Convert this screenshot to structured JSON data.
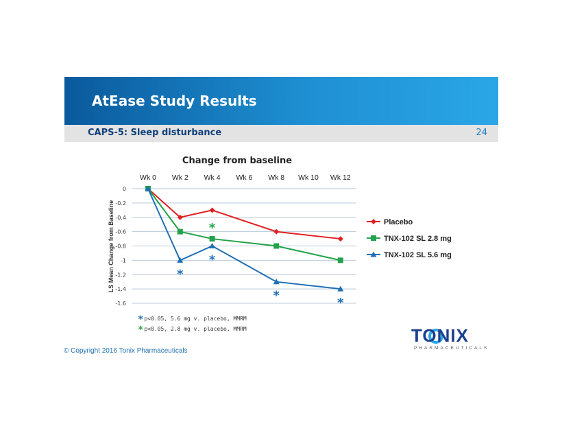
{
  "slide": {
    "title": "AtEase Study Results",
    "subtitle": "CAPS-5: Sleep disturbance",
    "page_number": "24",
    "copyright": "© Copyright 2016 Tonix Pharmaceuticals",
    "logo_text": "TONIX",
    "logo_subtext": "PHARMACEUTICALS"
  },
  "footnotes": [
    {
      "star": "*",
      "text": "p<0.05, 5.6 mg v. placebo, MMRM",
      "color": "#1f6fb4"
    },
    {
      "star": "*",
      "text": "p<0.05, 2.8 mg v. placebo, MMRM",
      "color": "#22a24a"
    }
  ],
  "chart_data": {
    "type": "line",
    "title": "Change from baseline",
    "ylabel": "LS Mean Change from Baseline",
    "xlabel": "",
    "categories": [
      "Wk 0",
      "Wk 2",
      "Wk 4",
      "Wk 6",
      "Wk 8",
      "Wk 10",
      "Wk 12"
    ],
    "ylim": [
      -1.6,
      0
    ],
    "yticks": [
      "0",
      "-0.2",
      "-0.4",
      "-0.6",
      "-0.8",
      "-1",
      "-1.2",
      "-1.4",
      "-1.6"
    ],
    "grid": true,
    "x_axis_position": "top",
    "legend": "right",
    "series": [
      {
        "name": "Placebo",
        "color": "#e02020",
        "marker": "diamond",
        "x": [
          "Wk 0",
          "Wk 2",
          "Wk 4",
          "Wk 8",
          "Wk 12"
        ],
        "values": [
          0,
          -0.4,
          -0.3,
          -0.6,
          -0.7
        ]
      },
      {
        "name": "TNX-102 SL 2.8 mg",
        "color": "#22a24a",
        "marker": "square",
        "x": [
          "Wk 0",
          "Wk 2",
          "Wk 4",
          "Wk 8",
          "Wk 12"
        ],
        "values": [
          0,
          -0.6,
          -0.7,
          -0.8,
          -1.0
        ]
      },
      {
        "name": "TNX-102 SL 5.6 mg",
        "color": "#1f6fb4",
        "marker": "triangle",
        "x": [
          "Wk 0",
          "Wk 2",
          "Wk 4",
          "Wk 8",
          "Wk 12"
        ],
        "values": [
          0,
          -1.0,
          -0.8,
          -1.3,
          -1.4
        ]
      }
    ],
    "annotations": [
      {
        "text": "*",
        "x": "Wk 2",
        "series": "TNX-102 SL 5.6 mg",
        "color": "#1f6fb4",
        "position": "below"
      },
      {
        "text": "*",
        "x": "Wk 4",
        "series": "TNX-102 SL 5.6 mg",
        "color": "#1f6fb4",
        "position": "below"
      },
      {
        "text": "*",
        "x": "Wk 4",
        "series": "TNX-102 SL 2.8 mg",
        "color": "#22a24a",
        "position": "above"
      },
      {
        "text": "*",
        "x": "Wk 8",
        "series": "TNX-102 SL 5.6 mg",
        "color": "#1f6fb4",
        "position": "below"
      },
      {
        "text": "*",
        "x": "Wk 12",
        "series": "TNX-102 SL 5.6 mg",
        "color": "#1f6fb4",
        "position": "below"
      }
    ]
  }
}
